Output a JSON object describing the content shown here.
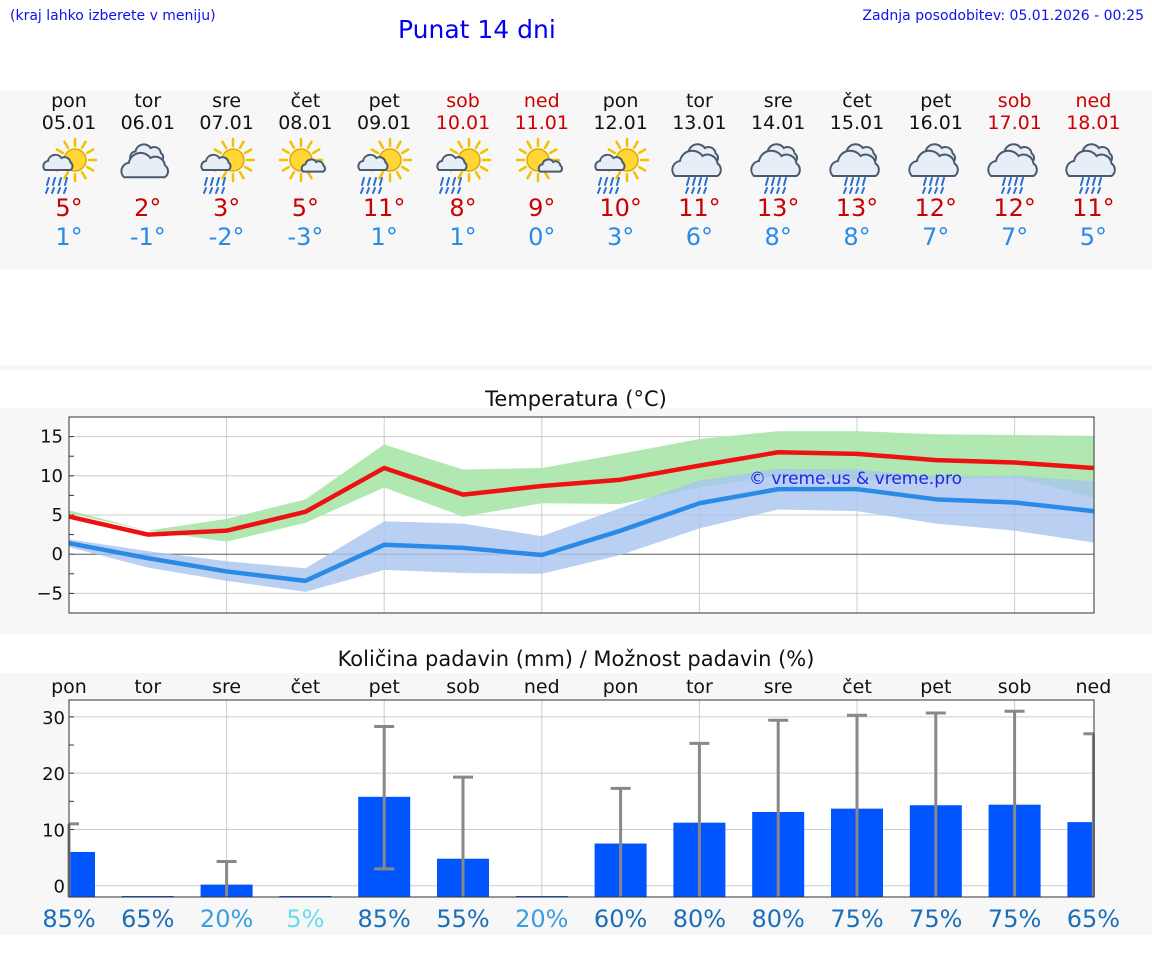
{
  "header": {
    "hint": "(kraj lahko izberete v meniju)",
    "title": "Punat 14 dni",
    "updated": "Zadnja posodobitev: 05.01.2026 - 00:25"
  },
  "days": [
    {
      "name": "pon",
      "date": "05.01",
      "hi": "5°",
      "lo": "1°",
      "weekend": false,
      "icon": "sun-cloud-rain-icon"
    },
    {
      "name": "tor",
      "date": "06.01",
      "hi": "2°",
      "lo": "-1°",
      "weekend": false,
      "icon": "cloudy-icon"
    },
    {
      "name": "sre",
      "date": "07.01",
      "hi": "3°",
      "lo": "-2°",
      "weekend": false,
      "icon": "sun-cloud-rain-icon"
    },
    {
      "name": "čet",
      "date": "08.01",
      "hi": "5°",
      "lo": "-3°",
      "weekend": false,
      "icon": "sun-small-cloud-icon"
    },
    {
      "name": "pet",
      "date": "09.01",
      "hi": "11°",
      "lo": "1°",
      "weekend": false,
      "icon": "sun-cloud-rain-icon"
    },
    {
      "name": "sob",
      "date": "10.01",
      "hi": "8°",
      "lo": "1°",
      "weekend": true,
      "icon": "sun-cloud-rain-icon"
    },
    {
      "name": "ned",
      "date": "11.01",
      "hi": "9°",
      "lo": "0°",
      "weekend": true,
      "icon": "sun-small-cloud-icon"
    },
    {
      "name": "pon",
      "date": "12.01",
      "hi": "10°",
      "lo": "3°",
      "weekend": false,
      "icon": "sun-cloud-rain-icon"
    },
    {
      "name": "tor",
      "date": "13.01",
      "hi": "11°",
      "lo": "6°",
      "weekend": false,
      "icon": "rain-cloud-icon"
    },
    {
      "name": "sre",
      "date": "14.01",
      "hi": "13°",
      "lo": "8°",
      "weekend": false,
      "icon": "rain-cloud-icon"
    },
    {
      "name": "čet",
      "date": "15.01",
      "hi": "13°",
      "lo": "8°",
      "weekend": false,
      "icon": "rain-cloud-icon"
    },
    {
      "name": "pet",
      "date": "16.01",
      "hi": "12°",
      "lo": "7°",
      "weekend": false,
      "icon": "rain-cloud-icon"
    },
    {
      "name": "sob",
      "date": "17.01",
      "hi": "12°",
      "lo": "7°",
      "weekend": true,
      "icon": "rain-cloud-icon"
    },
    {
      "name": "ned",
      "date": "18.01",
      "hi": "11°",
      "lo": "5°",
      "weekend": true,
      "icon": "rain-cloud-icon"
    }
  ],
  "colors": {
    "max_line": "#ee1111",
    "min_line": "#2a8ae6",
    "max_band": "#a8e6a8",
    "min_band": "#a8c4f0",
    "bar": "#0055ff",
    "error": "#888888",
    "prob_dark": "#1a6fb8",
    "prob_mid": "#3a9ee0",
    "prob_light": "#66ddee"
  },
  "chart_data": [
    {
      "type": "line",
      "title": "Temperatura (°C)",
      "ylim": [
        -7.5,
        17.5
      ],
      "yticks": [
        15,
        10,
        5,
        0,
        -5
      ],
      "ytick_labels": [
        "15",
        "10",
        "5",
        "0",
        "−5"
      ],
      "watermark": "© vreme.us & vreme.pro",
      "x": [
        0,
        1,
        2,
        3,
        4,
        5,
        6,
        7,
        8,
        9,
        10,
        11,
        12,
        13
      ],
      "series": [
        {
          "name": "max",
          "values": [
            4.8,
            2.5,
            3.0,
            5.4,
            11.0,
            7.6,
            8.7,
            9.5,
            11.3,
            13.0,
            12.8,
            12.0,
            11.7,
            11.0
          ],
          "band_low": [
            5.2,
            3.0,
            1.6,
            4.0,
            8.5,
            4.8,
            6.5,
            6.4,
            8.5,
            10.0,
            9.5,
            9.5,
            9.8,
            7.2
          ],
          "band_high": [
            5.6,
            3.0,
            4.5,
            7.0,
            14.0,
            10.8,
            11.0,
            12.8,
            14.7,
            15.7,
            15.7,
            15.3,
            15.2,
            15.1
          ]
        },
        {
          "name": "min",
          "values": [
            1.4,
            -0.5,
            -2.2,
            -3.4,
            1.2,
            0.8,
            -0.1,
            3.0,
            6.5,
            8.3,
            8.3,
            7.0,
            6.6,
            5.5
          ],
          "band_low": [
            0.9,
            -1.7,
            -3.4,
            -4.8,
            -2.0,
            -2.4,
            -2.5,
            -0.1,
            3.3,
            5.7,
            5.5,
            3.9,
            3.0,
            1.5
          ],
          "band_high": [
            1.9,
            0.4,
            -0.9,
            -1.8,
            4.2,
            3.9,
            2.3,
            5.9,
            9.4,
            10.9,
            10.8,
            9.9,
            10.0,
            9.3
          ]
        }
      ]
    },
    {
      "type": "bar",
      "title": "Količina padavin (mm) / Možnost padavin (%)",
      "ylim": [
        -2,
        33
      ],
      "yticks": [
        30,
        20,
        10,
        0
      ],
      "categories": [
        "pon",
        "tor",
        "sre",
        "čet",
        "pet",
        "sob",
        "ned",
        "pon",
        "tor",
        "sre",
        "čet",
        "pet",
        "sob",
        "ned"
      ],
      "values": [
        6,
        0,
        0.2,
        0,
        15.8,
        4.8,
        0,
        7.5,
        11.2,
        13.1,
        13.7,
        14.3,
        14.4,
        11.3
      ],
      "error_low": [
        0,
        0,
        0,
        0,
        3,
        0,
        0,
        0,
        0,
        0,
        0,
        0,
        0,
        0
      ],
      "error_high": [
        11,
        0,
        4.3,
        0,
        28.3,
        19.3,
        0,
        17.3,
        25.3,
        29.4,
        30.3,
        30.7,
        31,
        27
      ],
      "probability": [
        "85%",
        "65%",
        "20%",
        "5%",
        "85%",
        "55%",
        "20%",
        "60%",
        "80%",
        "80%",
        "75%",
        "75%",
        "75%",
        "65%"
      ],
      "probability_values": [
        85,
        65,
        20,
        5,
        85,
        55,
        20,
        60,
        80,
        80,
        75,
        75,
        75,
        65
      ]
    }
  ]
}
